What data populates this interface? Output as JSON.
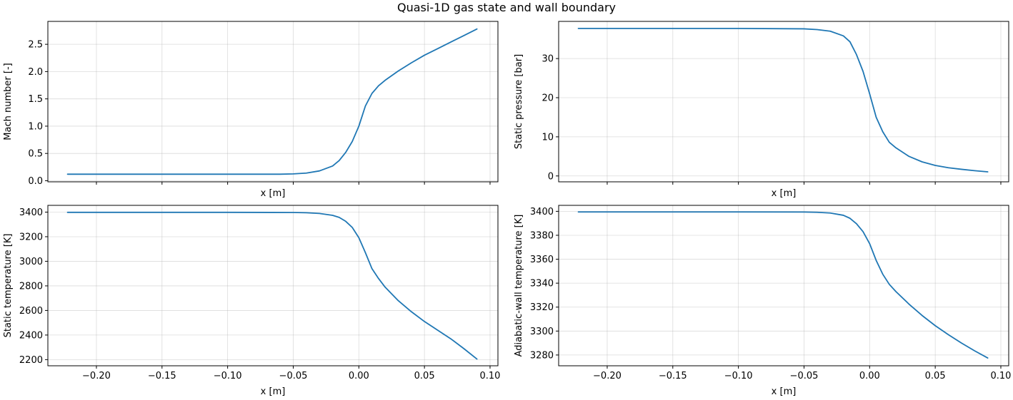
{
  "figure": {
    "title": "Quasi-1D gas state and wall boundary",
    "line_color": "#1f77b4",
    "grid": true
  },
  "chart_data": [
    {
      "type": "line",
      "xlabel": "x [m]",
      "ylabel": "Mach number [-]",
      "xlim": [
        -0.237,
        0.106
      ],
      "ylim": [
        -0.02,
        2.92
      ],
      "xticks": [],
      "xtick_labels": [],
      "yticks": [
        0.0,
        0.5,
        1.0,
        1.5,
        2.0,
        2.5
      ],
      "ytick_labels": [
        "0.0",
        "0.5",
        "1.0",
        "1.5",
        "2.0",
        "2.5"
      ],
      "series": [
        {
          "x": [
            -0.222,
            -0.15,
            -0.1,
            -0.06,
            -0.05,
            -0.04,
            -0.03,
            -0.02,
            -0.015,
            -0.01,
            -0.005,
            0.0,
            0.005,
            0.01,
            0.015,
            0.02,
            0.03,
            0.04,
            0.05,
            0.06,
            0.07,
            0.08,
            0.09
          ],
          "y": [
            0.12,
            0.12,
            0.12,
            0.12,
            0.125,
            0.14,
            0.18,
            0.27,
            0.37,
            0.52,
            0.72,
            1.0,
            1.37,
            1.6,
            1.74,
            1.84,
            2.01,
            2.16,
            2.3,
            2.42,
            2.54,
            2.66,
            2.78
          ]
        }
      ]
    },
    {
      "type": "line",
      "xlabel": "x [m]",
      "ylabel": "Static pressure [bar]",
      "xlim": [
        -0.237,
        0.106
      ],
      "ylim": [
        -1.5,
        39.5
      ],
      "xticks": [],
      "xtick_labels": [],
      "yticks": [
        0,
        10,
        20,
        30
      ],
      "ytick_labels": [
        "0",
        "10",
        "20",
        "30"
      ],
      "series": [
        {
          "x": [
            -0.222,
            -0.15,
            -0.1,
            -0.05,
            -0.04,
            -0.03,
            -0.02,
            -0.015,
            -0.01,
            -0.005,
            0.0,
            0.005,
            0.01,
            0.015,
            0.02,
            0.03,
            0.04,
            0.05,
            0.06,
            0.07,
            0.08,
            0.09
          ],
          "y": [
            37.7,
            37.7,
            37.7,
            37.6,
            37.4,
            37.0,
            35.8,
            34.3,
            31.0,
            26.7,
            21.0,
            15.0,
            11.3,
            8.6,
            7.2,
            5.0,
            3.6,
            2.7,
            2.1,
            1.7,
            1.35,
            1.05
          ]
        }
      ]
    },
    {
      "type": "line",
      "xlabel": "x [m]",
      "ylabel": "Static temperature [K]",
      "xlim": [
        -0.237,
        0.106
      ],
      "ylim": [
        2150,
        3455
      ],
      "xticks": [
        -0.2,
        -0.15,
        -0.1,
        -0.05,
        0.0,
        0.05,
        0.1
      ],
      "xtick_labels": [
        "−0.20",
        "−0.15",
        "−0.10",
        "−0.05",
        "0.00",
        "0.05",
        "0.10"
      ],
      "yticks": [
        2200,
        2400,
        2600,
        2800,
        3000,
        3200,
        3400
      ],
      "ytick_labels": [
        "2200",
        "2400",
        "2600",
        "2800",
        "3000",
        "3200",
        "3400"
      ],
      "series": [
        {
          "x": [
            -0.222,
            -0.15,
            -0.1,
            -0.05,
            -0.04,
            -0.03,
            -0.02,
            -0.015,
            -0.01,
            -0.005,
            0.0,
            0.005,
            0.01,
            0.015,
            0.02,
            0.03,
            0.04,
            0.05,
            0.06,
            0.07,
            0.08,
            0.09
          ],
          "y": [
            3398,
            3398,
            3398,
            3397,
            3395,
            3389,
            3374,
            3357,
            3325,
            3275,
            3192,
            3070,
            2940,
            2860,
            2790,
            2680,
            2590,
            2510,
            2440,
            2370,
            2290,
            2205
          ]
        }
      ]
    },
    {
      "type": "line",
      "xlabel": "x [m]",
      "ylabel": "Adiabatic-wall temperature [K]",
      "xlim": [
        -0.237,
        0.106
      ],
      "ylim": [
        3271,
        3405
      ],
      "xticks": [
        -0.2,
        -0.15,
        -0.1,
        -0.05,
        0.0,
        0.05,
        0.1
      ],
      "xtick_labels": [
        "−0.20",
        "−0.15",
        "−0.10",
        "−0.05",
        "0.00",
        "0.05",
        "0.10"
      ],
      "yticks": [
        3280,
        3300,
        3320,
        3340,
        3360,
        3380,
        3400
      ],
      "ytick_labels": [
        "3280",
        "3300",
        "3320",
        "3340",
        "3360",
        "3380",
        "3400"
      ],
      "series": [
        {
          "x": [
            -0.222,
            -0.15,
            -0.1,
            -0.05,
            -0.04,
            -0.03,
            -0.02,
            -0.015,
            -0.01,
            -0.005,
            0.0,
            0.005,
            0.01,
            0.015,
            0.02,
            0.03,
            0.04,
            0.05,
            0.06,
            0.07,
            0.08,
            0.09
          ],
          "y": [
            3399.5,
            3399.5,
            3399.5,
            3399.4,
            3399.2,
            3398.6,
            3396.7,
            3394.2,
            3389.6,
            3383.0,
            3373.0,
            3359.0,
            3347.5,
            3339.0,
            3333.0,
            3322.5,
            3313.0,
            3304.5,
            3297.0,
            3290.0,
            3283.5,
            3277.5
          ]
        }
      ]
    }
  ]
}
